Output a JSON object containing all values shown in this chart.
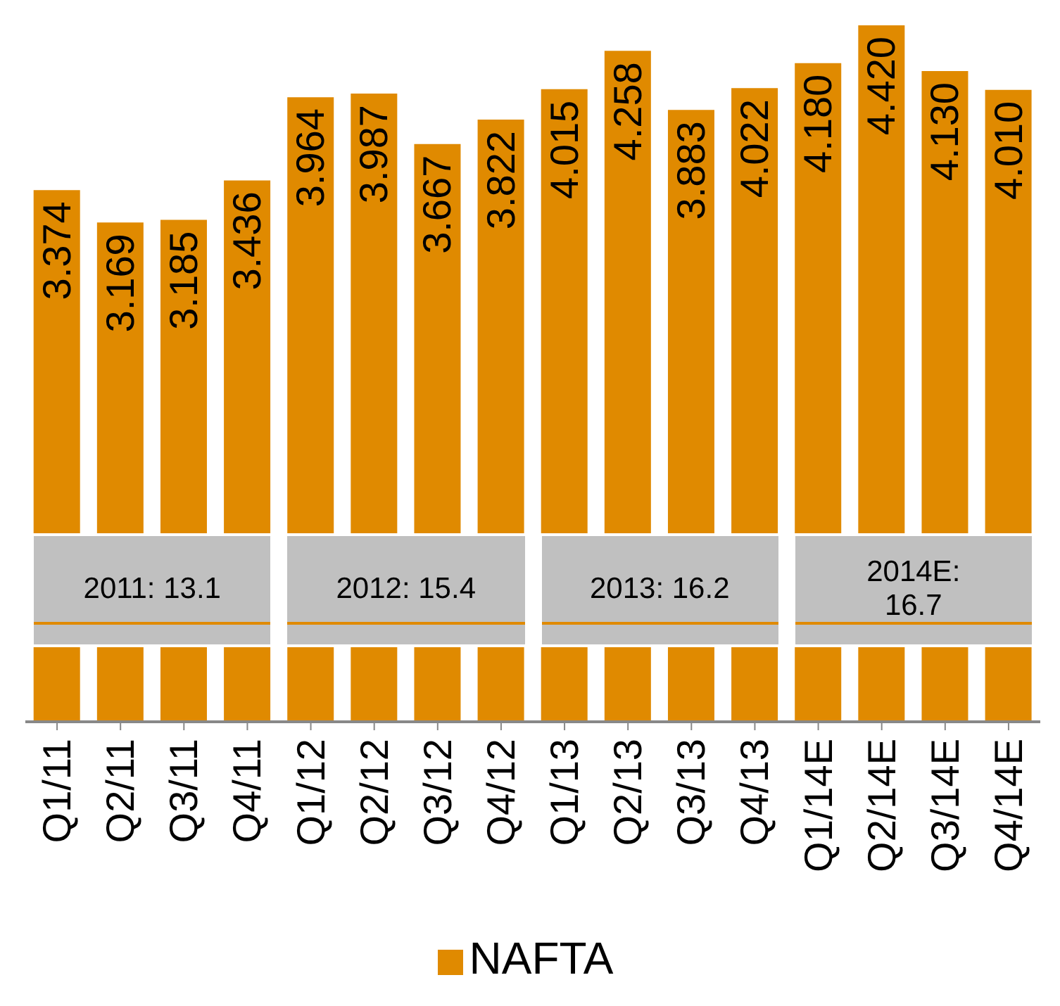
{
  "chart_data": {
    "type": "bar",
    "categories": [
      "Q1/11",
      "Q2/11",
      "Q3/11",
      "Q4/11",
      "Q1/12",
      "Q2/12",
      "Q3/12",
      "Q4/12",
      "Q1/13",
      "Q2/13",
      "Q3/13",
      "Q4/13",
      "Q1/14E",
      "Q2/14E",
      "Q3/14E",
      "Q4/14E"
    ],
    "series": [
      {
        "name": "NAFTA",
        "color": "#e08a00",
        "values": [
          3.374,
          3.169,
          3.185,
          3.436,
          3.964,
          3.987,
          3.667,
          3.822,
          4.015,
          4.258,
          3.883,
          4.022,
          4.18,
          4.42,
          4.13,
          4.01
        ],
        "value_labels": [
          "3.374",
          "3.169",
          "3.185",
          "3.436",
          "3.964",
          "3.987",
          "3.667",
          "3.822",
          "4.015",
          "4.258",
          "3.883",
          "4.022",
          "4.180",
          "4.420",
          "4.130",
          "4.010"
        ]
      }
    ],
    "legend": "bottom",
    "annotations": [
      "2011: 13.1",
      "2012: 15.4",
      "2013: 16.2",
      "2014E: 16.7"
    ]
  }
}
